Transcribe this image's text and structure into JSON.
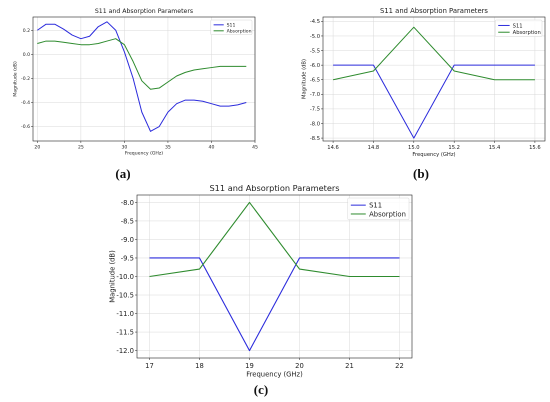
{
  "colors": {
    "s11": "#2b2bdc",
    "absorption": "#2e8b2e"
  },
  "chart_data": [
    {
      "panel": "(a)",
      "type": "line",
      "title": "S11 and Absorption Parameters",
      "xlabel": "Frequency (GHz)",
      "ylabel": "Magnitude (dB)",
      "xlim": [
        19.5,
        45
      ],
      "ylim": [
        -0.72,
        0.31
      ],
      "xticks": [
        20,
        25,
        30,
        35,
        40,
        45
      ],
      "yticks": [
        -0.6,
        -0.4,
        -0.2,
        0.0,
        0.2
      ],
      "ytick_labels": [
        "-0.6",
        "-0.4",
        "-0.2",
        "0.0",
        "0.2"
      ],
      "legend": "top-right",
      "grid": true,
      "series": [
        {
          "name": "S11",
          "color": "s11",
          "x": [
            20,
            21,
            22,
            23,
            24,
            25,
            26,
            27,
            28,
            29,
            30,
            31,
            32,
            33,
            34,
            35,
            36,
            37,
            38,
            39,
            40,
            41,
            42,
            43,
            44
          ],
          "y": [
            0.2,
            0.25,
            0.25,
            0.21,
            0.16,
            0.13,
            0.15,
            0.23,
            0.27,
            0.2,
            0.02,
            -0.2,
            -0.48,
            -0.64,
            -0.6,
            -0.48,
            -0.41,
            -0.38,
            -0.38,
            -0.39,
            -0.41,
            -0.43,
            -0.43,
            -0.42,
            -0.4
          ]
        },
        {
          "name": "Absorption",
          "color": "absorption",
          "x": [
            20,
            21,
            22,
            23,
            24,
            25,
            26,
            27,
            28,
            29,
            30,
            31,
            32,
            33,
            34,
            35,
            36,
            37,
            38,
            39,
            40,
            41,
            42,
            43,
            44
          ],
          "y": [
            0.09,
            0.11,
            0.11,
            0.1,
            0.09,
            0.08,
            0.08,
            0.09,
            0.11,
            0.13,
            0.08,
            -0.06,
            -0.22,
            -0.29,
            -0.28,
            -0.23,
            -0.18,
            -0.15,
            -0.13,
            -0.12,
            -0.11,
            -0.1,
            -0.1,
            -0.1,
            -0.1
          ]
        }
      ]
    },
    {
      "panel": "(b)",
      "type": "line",
      "title": "S11 and Absorption Parameters",
      "xlabel": "Frequency (GHz)",
      "ylabel": "Magnitude (dB)",
      "xlim": [
        14.55,
        15.65
      ],
      "ylim": [
        -8.6,
        -4.35
      ],
      "xticks": [
        14.6,
        14.8,
        15.0,
        15.2,
        15.4,
        15.6
      ],
      "xtick_labels": [
        "14.6",
        "14.8",
        "15.0",
        "15.2",
        "15.4",
        "15.6"
      ],
      "yticks": [
        -8.5,
        -8.0,
        -7.5,
        -7.0,
        -6.5,
        -6.0,
        -5.5,
        -5.0,
        -4.5
      ],
      "ytick_labels": [
        "-8.5",
        "-8.0",
        "-7.5",
        "-7.0",
        "-6.5",
        "-6.0",
        "-5.5",
        "-5.0",
        "-4.5"
      ],
      "legend": "top-right",
      "grid": true,
      "series": [
        {
          "name": "S11",
          "color": "s11",
          "x": [
            14.6,
            14.8,
            15.0,
            15.2,
            15.4,
            15.6
          ],
          "y": [
            -6.0,
            -6.0,
            -8.5,
            -6.0,
            -6.0,
            -6.0
          ]
        },
        {
          "name": "Absorption",
          "color": "absorption",
          "x": [
            14.6,
            14.8,
            15.0,
            15.2,
            15.4,
            15.6
          ],
          "y": [
            -6.5,
            -6.2,
            -4.7,
            -6.2,
            -6.5,
            -6.5
          ]
        }
      ]
    },
    {
      "panel": "(c)",
      "type": "line",
      "title": "S11 and Absorption Parameters",
      "xlabel": "Frequency (GHz)",
      "ylabel": "Magnitude (dB)",
      "xlim": [
        16.75,
        22.25
      ],
      "ylim": [
        -12.2,
        -7.8
      ],
      "xticks": [
        17,
        18,
        19,
        20,
        21,
        22
      ],
      "xtick_labels": [
        "17",
        "18",
        "19",
        "20",
        "21",
        "22"
      ],
      "yticks": [
        -12.0,
        -11.5,
        -11.0,
        -10.5,
        -10.0,
        -9.5,
        -9.0,
        -8.5,
        -8.0
      ],
      "ytick_labels": [
        "-12.0",
        "-11.5",
        "-11.0",
        "-10.5",
        "-10.0",
        "-9.5",
        "-9.0",
        "-8.5",
        "-8.0"
      ],
      "legend": "top-right",
      "grid": true,
      "series": [
        {
          "name": "S11",
          "color": "s11",
          "x": [
            17,
            18,
            19,
            20,
            21,
            22
          ],
          "y": [
            -9.5,
            -9.5,
            -12.0,
            -9.5,
            -9.5,
            -9.5
          ]
        },
        {
          "name": "Absorption",
          "color": "absorption",
          "x": [
            17,
            18,
            19,
            20,
            21,
            22
          ],
          "y": [
            -10.0,
            -9.8,
            -8.0,
            -9.8,
            -10.0,
            -10.0
          ]
        }
      ]
    }
  ]
}
